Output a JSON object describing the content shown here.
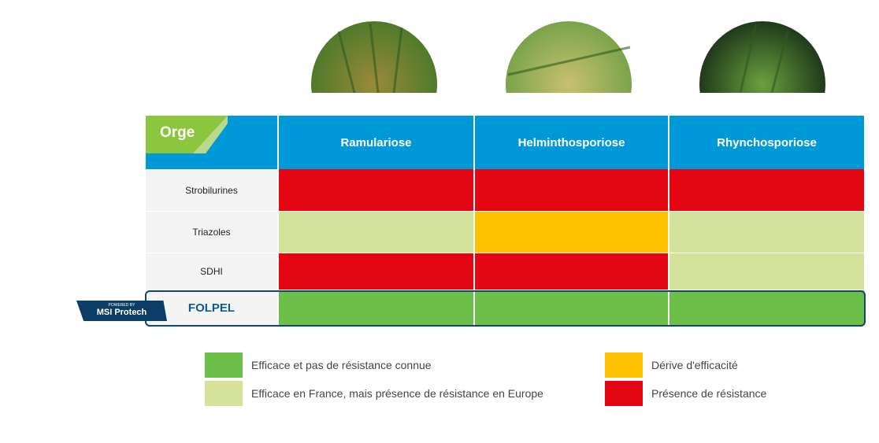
{
  "header": {
    "label": "Orge",
    "columns": [
      "Ramulariose",
      "Helminthosporiose",
      "Rhynchosporiose"
    ]
  },
  "rows": [
    {
      "name": "Strobilurines",
      "cells": [
        "#e30613",
        "#e30613",
        "#e30613"
      ]
    },
    {
      "name": "Triazoles",
      "cells": [
        "#d4e29a",
        "#fdc300",
        "#d4e29a"
      ]
    },
    {
      "name": "SDHI",
      "cells": [
        "#e30613",
        "#e30613",
        "#d4e29a"
      ]
    },
    {
      "name": "FOLPEL",
      "cells": [
        "#6cc04a",
        "#6cc04a",
        "#6cc04a"
      ]
    }
  ],
  "badge": {
    "small": "POWERED BY",
    "brand": "MSI Protech"
  },
  "legend": [
    {
      "label": "Efficace et pas de résistance connue",
      "color": "#6cc04a"
    },
    {
      "label": "Efficace en France, mais présence de résistance en Europe",
      "color": "#d4e29a"
    },
    {
      "label": "Dérive d'efficacité",
      "color": "#fdc300"
    },
    {
      "label": "Présence de résistance",
      "color": "#e30613"
    }
  ]
}
